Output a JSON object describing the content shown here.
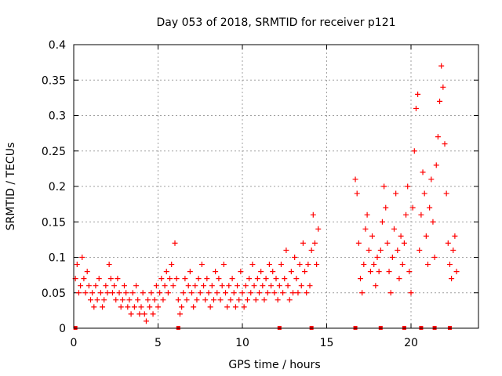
{
  "chart_data": {
    "type": "scatter",
    "title": "Day 053 of 2018, SRMTID for receiver p121",
    "xlabel": "GPS time / hours",
    "ylabel": "SRMTID / TECUs",
    "xlim": [
      0,
      24
    ],
    "ylim": [
      0,
      0.4
    ],
    "x_ticks": [
      0,
      5,
      10,
      15,
      20
    ],
    "y_ticks": [
      0,
      0.05,
      0.1,
      0.15,
      0.2,
      0.25,
      0.3,
      0.35,
      0.4
    ],
    "x_tick_labels": [
      "0",
      "5",
      "10",
      "15",
      "20"
    ],
    "y_tick_labels": [
      "0",
      "0.05",
      "0.1",
      "0.15",
      "0.2",
      "0.25",
      "0.3",
      "0.35",
      "0.4"
    ],
    "grid": true,
    "marker": "+",
    "series_color": "#ff0000",
    "baseline_markers_x": [
      0.1,
      6.2,
      12.2,
      14.1,
      16.7,
      18.2,
      19.6,
      20.6,
      21.4,
      22.3
    ],
    "series": [
      {
        "name": "SRMTID p121",
        "points": [
          [
            0.1,
            0.07
          ],
          [
            0.2,
            0.09
          ],
          [
            0.3,
            0.05
          ],
          [
            0.4,
            0.06
          ],
          [
            0.5,
            0.1
          ],
          [
            0.6,
            0.07
          ],
          [
            0.7,
            0.05
          ],
          [
            0.8,
            0.08
          ],
          [
            0.9,
            0.06
          ],
          [
            1.0,
            0.04
          ],
          [
            1.1,
            0.05
          ],
          [
            1.2,
            0.03
          ],
          [
            1.3,
            0.06
          ],
          [
            1.4,
            0.04
          ],
          [
            1.5,
            0.07
          ],
          [
            1.6,
            0.05
          ],
          [
            1.7,
            0.03
          ],
          [
            1.8,
            0.04
          ],
          [
            1.9,
            0.06
          ],
          [
            2.0,
            0.05
          ],
          [
            2.1,
            0.09
          ],
          [
            2.2,
            0.07
          ],
          [
            2.3,
            0.05
          ],
          [
            2.4,
            0.06
          ],
          [
            2.5,
            0.04
          ],
          [
            2.6,
            0.07
          ],
          [
            2.7,
            0.05
          ],
          [
            2.8,
            0.03
          ],
          [
            2.9,
            0.04
          ],
          [
            3.0,
            0.06
          ],
          [
            3.1,
            0.05
          ],
          [
            3.2,
            0.03
          ],
          [
            3.3,
            0.04
          ],
          [
            3.4,
            0.02
          ],
          [
            3.5,
            0.05
          ],
          [
            3.6,
            0.03
          ],
          [
            3.7,
            0.06
          ],
          [
            3.8,
            0.04
          ],
          [
            3.9,
            0.02
          ],
          [
            4.0,
            0.03
          ],
          [
            4.1,
            0.05
          ],
          [
            4.2,
            0.02
          ],
          [
            4.3,
            0.01
          ],
          [
            4.4,
            0.04
          ],
          [
            4.5,
            0.03
          ],
          [
            4.6,
            0.05
          ],
          [
            4.7,
            0.02
          ],
          [
            4.8,
            0.04
          ],
          [
            4.9,
            0.06
          ],
          [
            5.0,
            0.03
          ],
          [
            5.1,
            0.05
          ],
          [
            5.2,
            0.07
          ],
          [
            5.3,
            0.04
          ],
          [
            5.4,
            0.06
          ],
          [
            5.5,
            0.08
          ],
          [
            5.6,
            0.05
          ],
          [
            5.7,
            0.07
          ],
          [
            5.8,
            0.09
          ],
          [
            5.9,
            0.06
          ],
          [
            6.0,
            0.12
          ],
          [
            6.1,
            0.07
          ],
          [
            6.2,
            0.04
          ],
          [
            6.3,
            0.02
          ],
          [
            6.4,
            0.03
          ],
          [
            6.5,
            0.05
          ],
          [
            6.6,
            0.07
          ],
          [
            6.7,
            0.04
          ],
          [
            6.8,
            0.06
          ],
          [
            6.9,
            0.08
          ],
          [
            7.0,
            0.05
          ],
          [
            7.1,
            0.03
          ],
          [
            7.2,
            0.06
          ],
          [
            7.3,
            0.04
          ],
          [
            7.4,
            0.07
          ],
          [
            7.5,
            0.05
          ],
          [
            7.6,
            0.09
          ],
          [
            7.7,
            0.06
          ],
          [
            7.8,
            0.04
          ],
          [
            7.9,
            0.07
          ],
          [
            8.0,
            0.05
          ],
          [
            8.1,
            0.03
          ],
          [
            8.2,
            0.06
          ],
          [
            8.3,
            0.04
          ],
          [
            8.4,
            0.08
          ],
          [
            8.5,
            0.05
          ],
          [
            8.6,
            0.07
          ],
          [
            8.7,
            0.04
          ],
          [
            8.8,
            0.06
          ],
          [
            8.9,
            0.09
          ],
          [
            9.0,
            0.05
          ],
          [
            9.1,
            0.03
          ],
          [
            9.2,
            0.06
          ],
          [
            9.3,
            0.04
          ],
          [
            9.4,
            0.07
          ],
          [
            9.5,
            0.05
          ],
          [
            9.6,
            0.03
          ],
          [
            9.7,
            0.06
          ],
          [
            9.8,
            0.04
          ],
          [
            9.9,
            0.08
          ],
          [
            10.0,
            0.05
          ],
          [
            10.1,
            0.03
          ],
          [
            10.2,
            0.06
          ],
          [
            10.3,
            0.04
          ],
          [
            10.4,
            0.07
          ],
          [
            10.5,
            0.05
          ],
          [
            10.6,
            0.09
          ],
          [
            10.7,
            0.06
          ],
          [
            10.8,
            0.04
          ],
          [
            10.9,
            0.07
          ],
          [
            11.0,
            0.05
          ],
          [
            11.1,
            0.08
          ],
          [
            11.2,
            0.06
          ],
          [
            11.3,
            0.04
          ],
          [
            11.4,
            0.07
          ],
          [
            11.5,
            0.05
          ],
          [
            11.6,
            0.09
          ],
          [
            11.7,
            0.06
          ],
          [
            11.8,
            0.08
          ],
          [
            11.9,
            0.05
          ],
          [
            12.0,
            0.07
          ],
          [
            12.1,
            0.04
          ],
          [
            12.2,
            0.06
          ],
          [
            12.3,
            0.09
          ],
          [
            12.4,
            0.05
          ],
          [
            12.5,
            0.07
          ],
          [
            12.6,
            0.11
          ],
          [
            12.7,
            0.06
          ],
          [
            12.8,
            0.04
          ],
          [
            12.9,
            0.08
          ],
          [
            13.0,
            0.05
          ],
          [
            13.1,
            0.1
          ],
          [
            13.2,
            0.07
          ],
          [
            13.3,
            0.05
          ],
          [
            13.4,
            0.09
          ],
          [
            13.5,
            0.06
          ],
          [
            13.6,
            0.12
          ],
          [
            13.7,
            0.08
          ],
          [
            13.8,
            0.05
          ],
          [
            13.9,
            0.09
          ],
          [
            14.0,
            0.06
          ],
          [
            14.1,
            0.11
          ],
          [
            14.2,
            0.16
          ],
          [
            14.3,
            0.12
          ],
          [
            14.4,
            0.09
          ],
          [
            14.5,
            0.14
          ],
          [
            16.7,
            0.21
          ],
          [
            16.8,
            0.19
          ],
          [
            16.9,
            0.12
          ],
          [
            17.0,
            0.07
          ],
          [
            17.1,
            0.05
          ],
          [
            17.2,
            0.09
          ],
          [
            17.3,
            0.14
          ],
          [
            17.4,
            0.16
          ],
          [
            17.5,
            0.11
          ],
          [
            17.6,
            0.08
          ],
          [
            17.7,
            0.13
          ],
          [
            17.8,
            0.09
          ],
          [
            17.9,
            0.06
          ],
          [
            18.0,
            0.1
          ],
          [
            18.1,
            0.08
          ],
          [
            18.2,
            0.11
          ],
          [
            18.3,
            0.15
          ],
          [
            18.4,
            0.2
          ],
          [
            18.5,
            0.17
          ],
          [
            18.6,
            0.12
          ],
          [
            18.7,
            0.08
          ],
          [
            18.8,
            0.05
          ],
          [
            18.9,
            0.1
          ],
          [
            19.0,
            0.14
          ],
          [
            19.1,
            0.19
          ],
          [
            19.2,
            0.11
          ],
          [
            19.3,
            0.07
          ],
          [
            19.4,
            0.13
          ],
          [
            19.5,
            0.09
          ],
          [
            19.6,
            0.12
          ],
          [
            19.7,
            0.16
          ],
          [
            19.8,
            0.2
          ],
          [
            19.9,
            0.08
          ],
          [
            20.0,
            0.05
          ],
          [
            20.1,
            0.17
          ],
          [
            20.2,
            0.25
          ],
          [
            20.3,
            0.31
          ],
          [
            20.4,
            0.33
          ],
          [
            20.5,
            0.11
          ],
          [
            20.6,
            0.16
          ],
          [
            20.7,
            0.22
          ],
          [
            20.8,
            0.19
          ],
          [
            20.9,
            0.13
          ],
          [
            21.0,
            0.09
          ],
          [
            21.1,
            0.17
          ],
          [
            21.2,
            0.21
          ],
          [
            21.3,
            0.15
          ],
          [
            21.4,
            0.1
          ],
          [
            21.5,
            0.23
          ],
          [
            21.6,
            0.27
          ],
          [
            21.7,
            0.32
          ],
          [
            21.8,
            0.37
          ],
          [
            21.9,
            0.34
          ],
          [
            22.0,
            0.26
          ],
          [
            22.1,
            0.19
          ],
          [
            22.2,
            0.12
          ],
          [
            22.3,
            0.09
          ],
          [
            22.4,
            0.07
          ],
          [
            22.5,
            0.11
          ],
          [
            22.6,
            0.13
          ],
          [
            22.7,
            0.08
          ]
        ]
      }
    ]
  }
}
